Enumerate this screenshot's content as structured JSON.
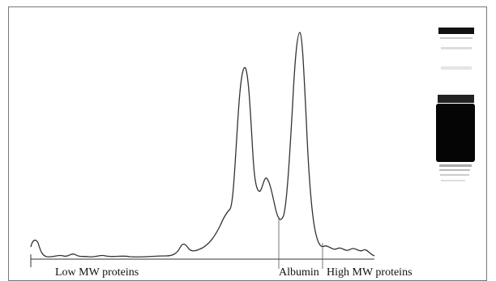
{
  "labels": {
    "low_mw": "Low MW proteins",
    "albumin": "Albumin",
    "high_mw": "High MW proteins"
  }
}
